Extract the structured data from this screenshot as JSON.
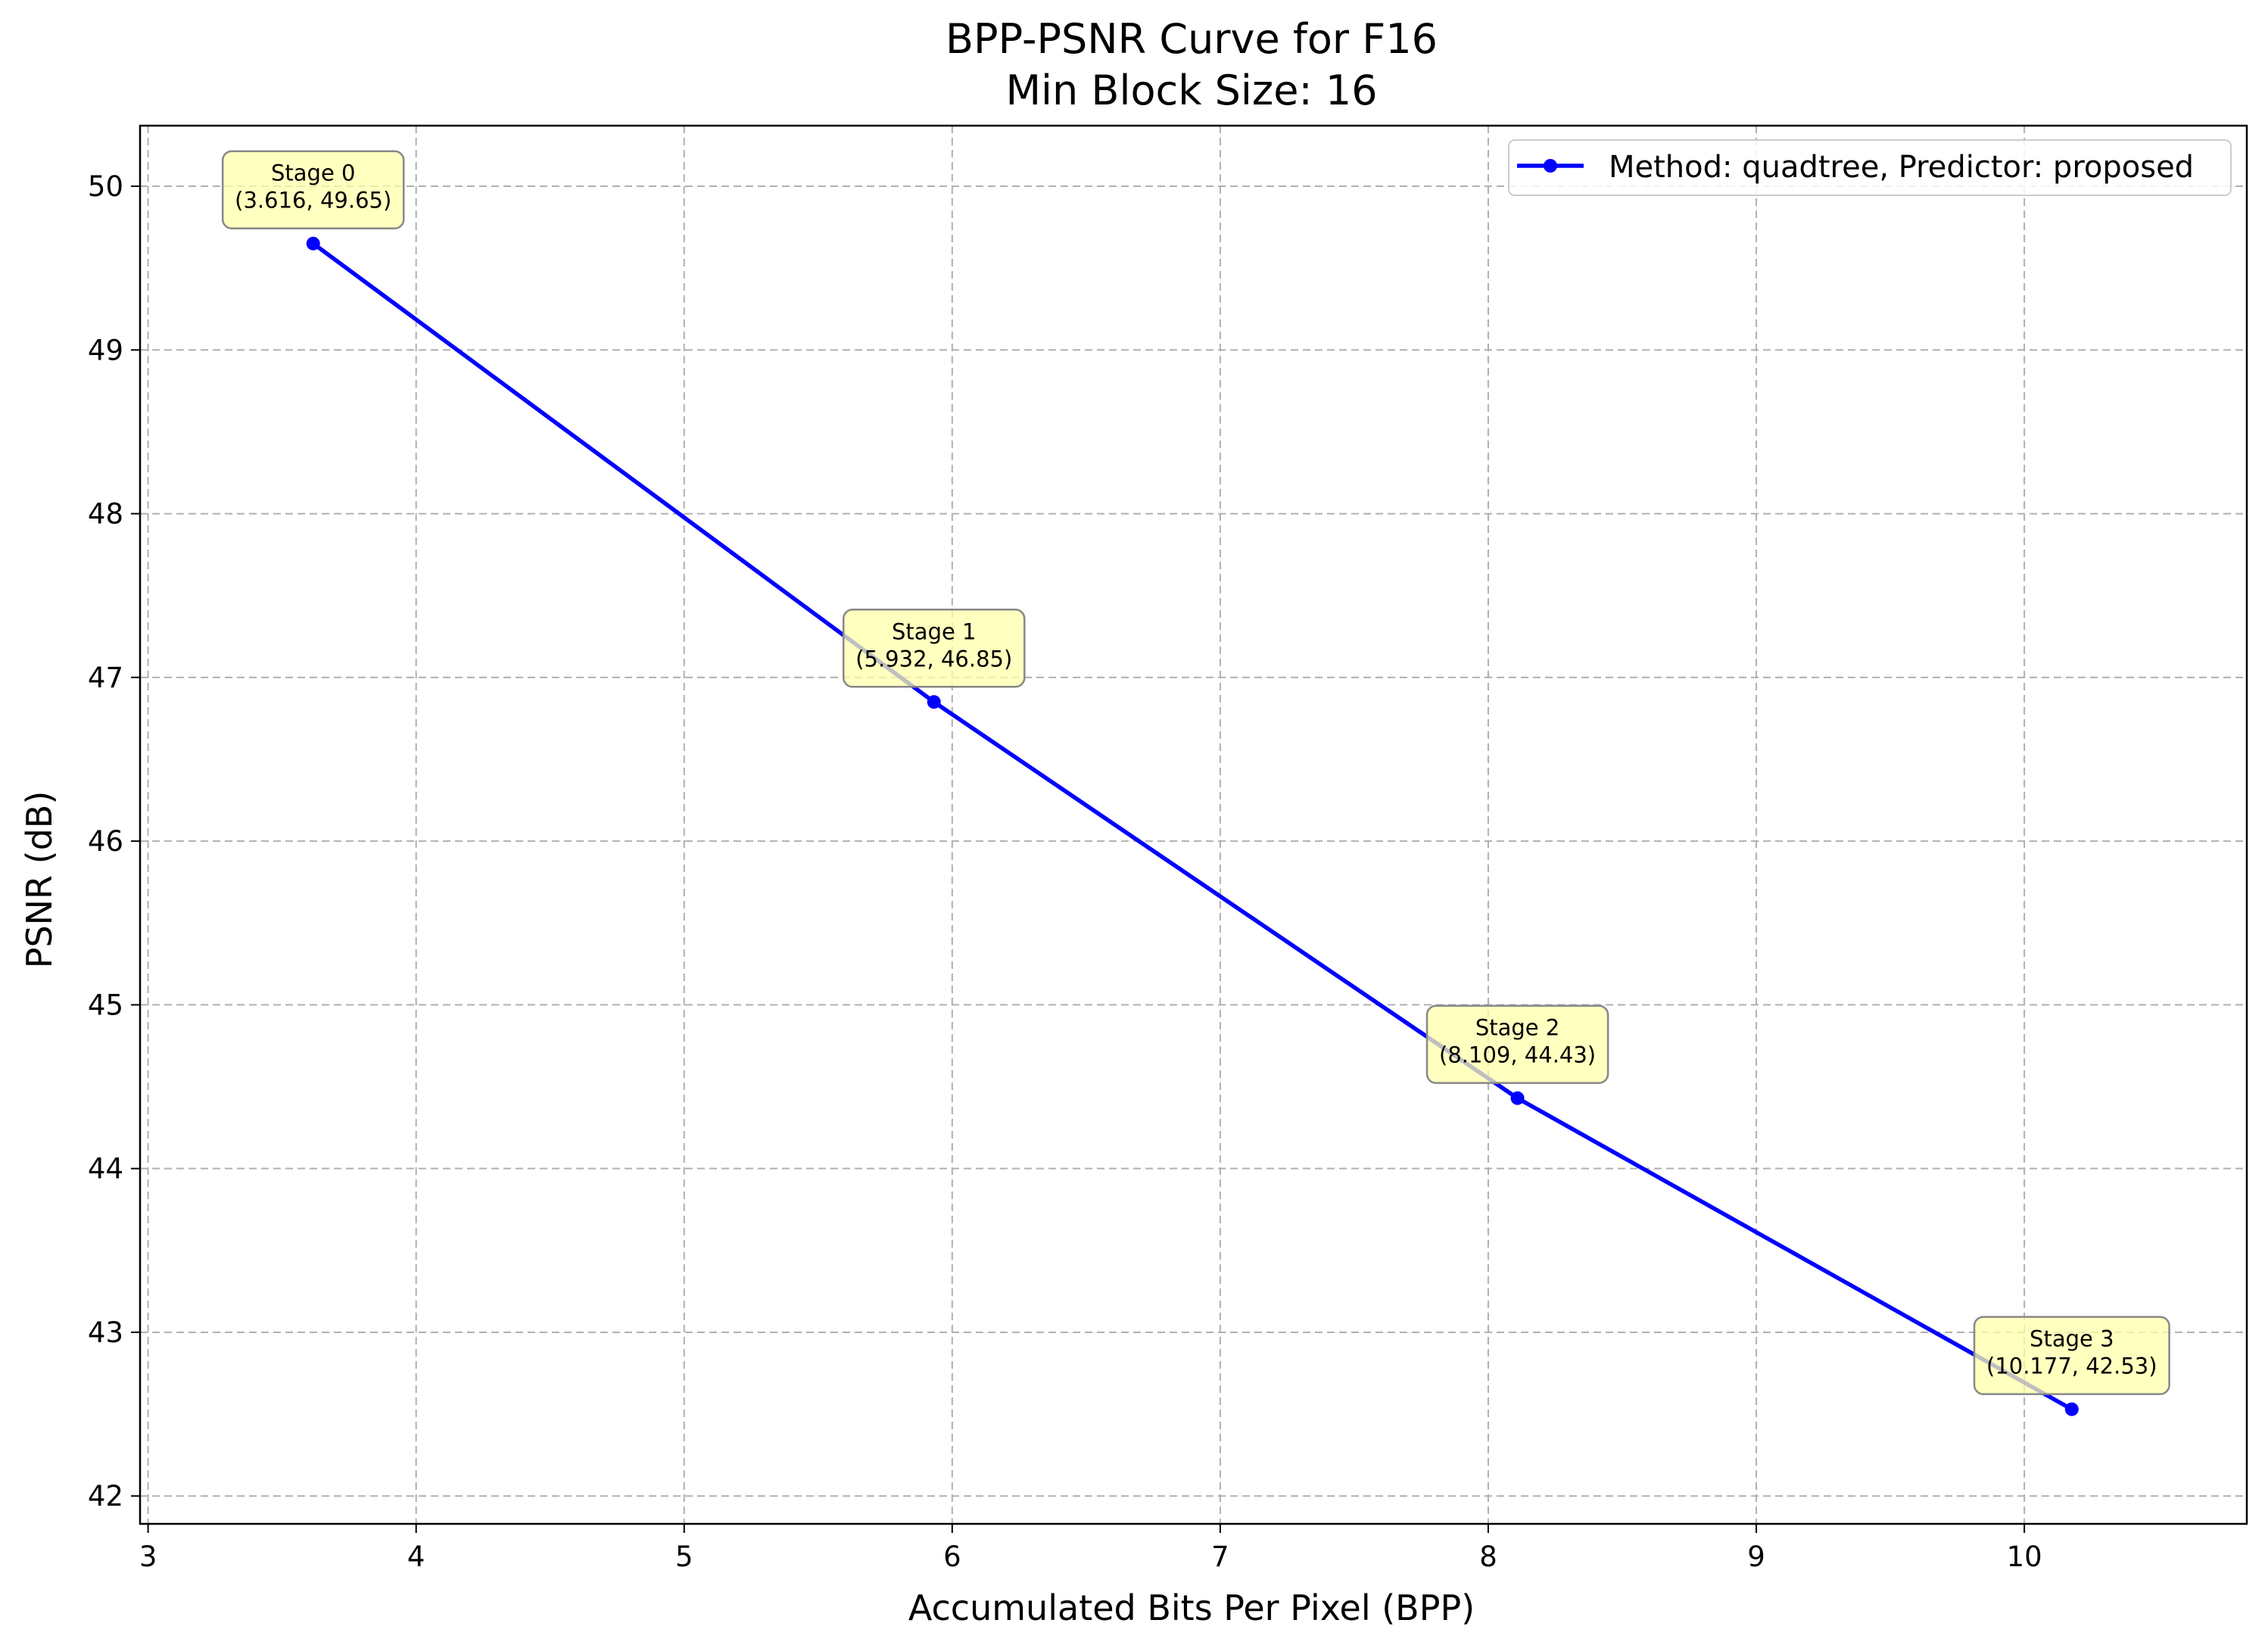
{
  "chart_data": {
    "type": "line",
    "title": "BPP-PSNR Curve for F16",
    "subtitle": "Min Block Size: 16",
    "xlabel": "Accumulated Bits Per Pixel (BPP)",
    "ylabel": "PSNR (dB)",
    "xlim": [
      2.97,
      10.83
    ],
    "ylim": [
      41.83,
      50.37
    ],
    "xticks": [
      3,
      4,
      5,
      6,
      7,
      8,
      9,
      10
    ],
    "yticks": [
      42,
      43,
      44,
      45,
      46,
      47,
      48,
      49,
      50
    ],
    "grid": true,
    "legend_position": "top-right",
    "series": [
      {
        "name": "Method: quadtree, Predictor: proposed",
        "color": "#0000ff",
        "marker": "circle",
        "x": [
          3.616,
          5.932,
          8.109,
          10.177
        ],
        "y": [
          49.65,
          46.85,
          44.43,
          42.53
        ]
      }
    ],
    "annotations": [
      {
        "x": 3.616,
        "y": 49.65,
        "line1": "Stage 0",
        "line2": "(3.616, 49.65)"
      },
      {
        "x": 5.932,
        "y": 46.85,
        "line1": "Stage 1",
        "line2": "(5.932, 46.85)"
      },
      {
        "x": 8.109,
        "y": 44.43,
        "line1": "Stage 2",
        "line2": "(8.109, 44.43)"
      },
      {
        "x": 10.177,
        "y": 42.53,
        "line1": "Stage 3",
        "line2": "(10.177, 42.53)"
      }
    ],
    "annotation_box_color": "#ffffaa"
  }
}
